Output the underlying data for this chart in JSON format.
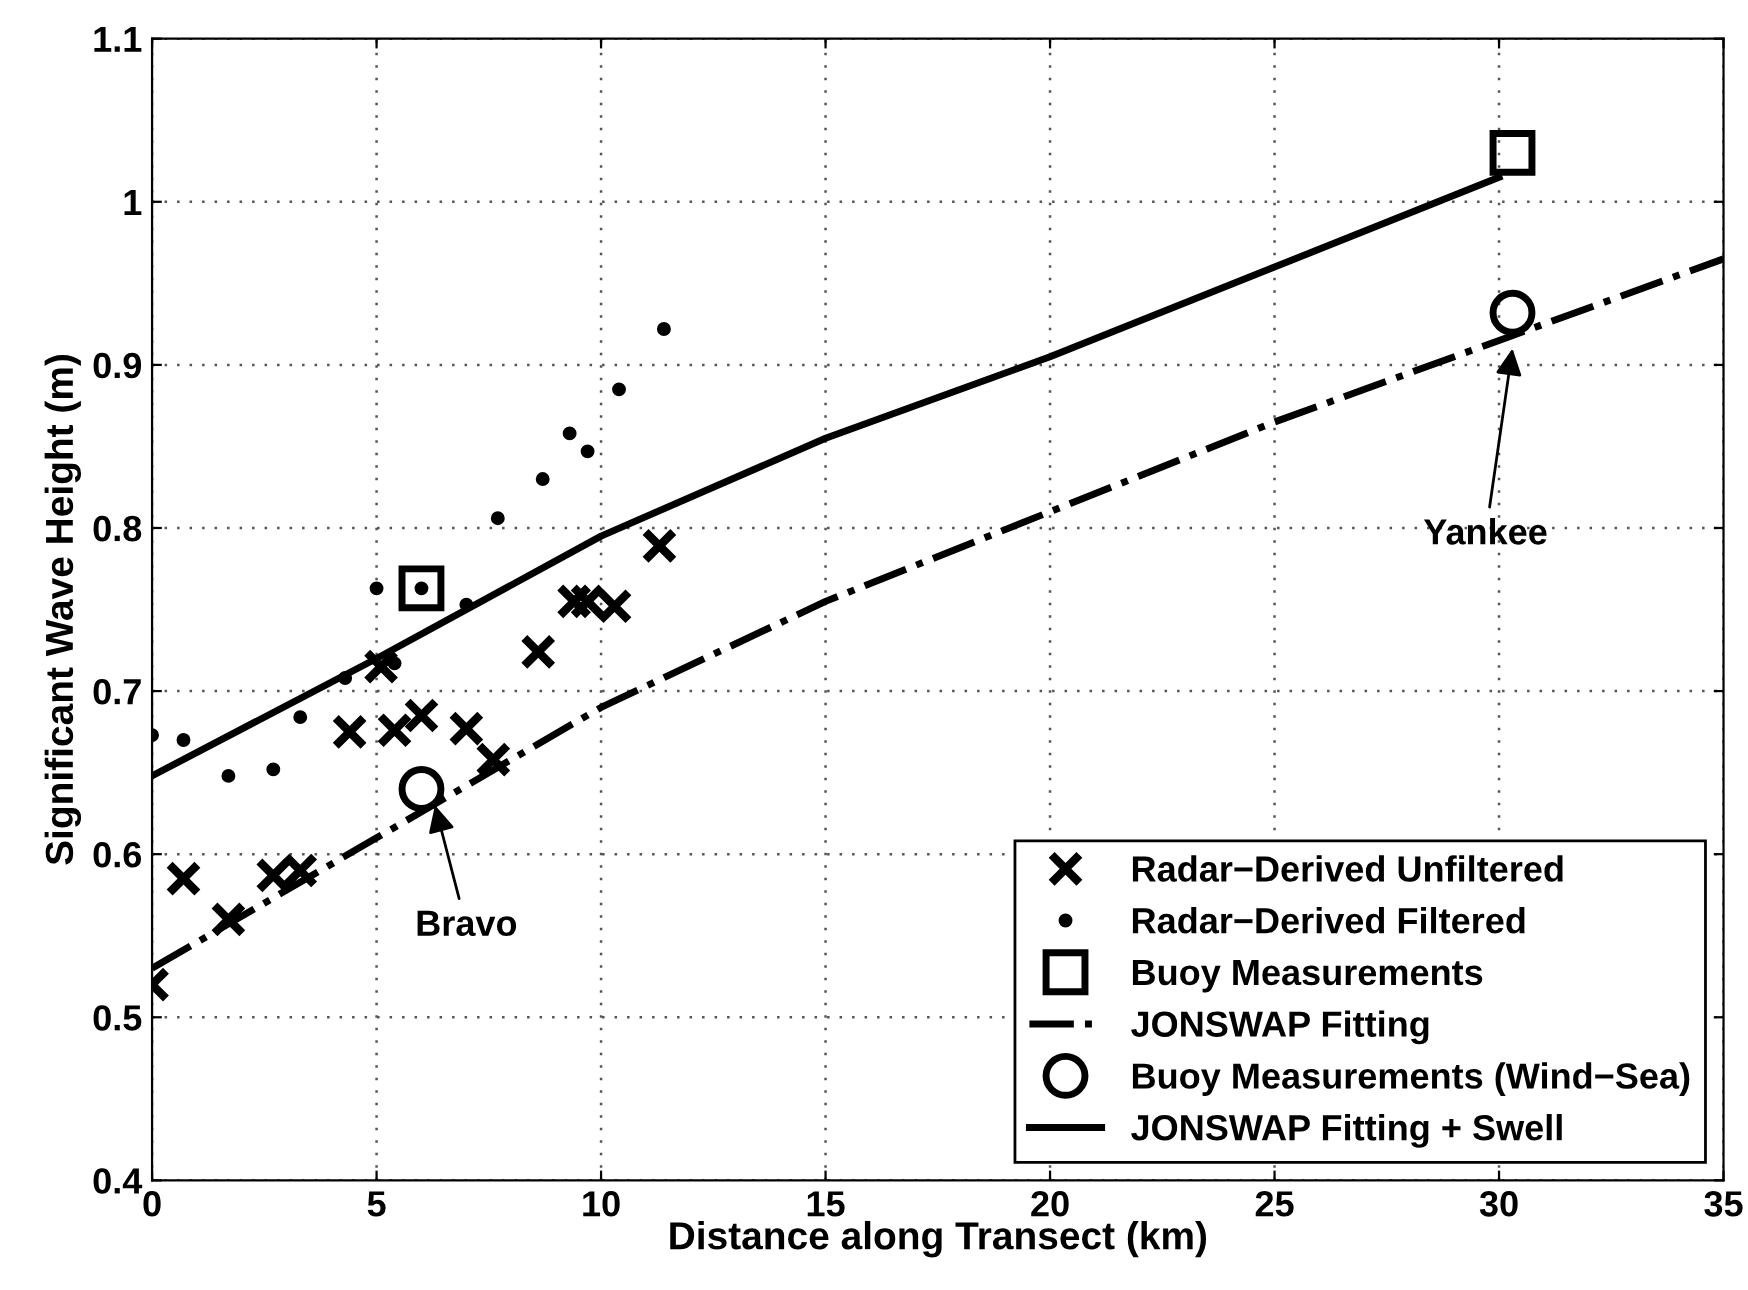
{
  "chart_data": {
    "type": "scatter",
    "xlabel": "Distance along Transect (km)",
    "ylabel": "Significant Wave Height (m)",
    "xlim": [
      0,
      35
    ],
    "ylim": [
      0.4,
      1.1
    ],
    "xticks": [
      0,
      5,
      10,
      15,
      20,
      25,
      30,
      35
    ],
    "yticks": [
      0.4,
      0.5,
      0.6,
      0.7,
      0.8,
      0.9,
      1,
      1.1
    ],
    "grid": true,
    "legend": "bottom right",
    "series": [
      {
        "name": "Radar−Derived Unfiltered",
        "marker": "cross",
        "color": "#000000",
        "x": [
          0,
          0.7,
          1.7,
          2.7,
          3.3,
          4.4,
          5.1,
          5.4,
          6,
          7,
          7.6,
          8.6,
          9.4,
          9.7,
          10.3,
          11.3
        ],
        "values": [
          0.52,
          0.585,
          0.56,
          0.587,
          0.59,
          0.675,
          0.715,
          0.676,
          0.685,
          0.677,
          0.658,
          0.724,
          0.755,
          0.755,
          0.752,
          0.789
        ]
      },
      {
        "name": "Radar−Derived Filtered",
        "marker": "circle",
        "color": "#000000",
        "x": [
          0,
          0.7,
          1.7,
          2.7,
          3.3,
          4.3,
          5,
          5.4,
          6,
          7,
          7.7,
          8.7,
          9.3,
          9.7,
          10.4,
          11.4
        ],
        "values": [
          0.673,
          0.67,
          0.648,
          0.652,
          0.684,
          0.708,
          0.763,
          0.717,
          0.763,
          0.753,
          0.806,
          0.83,
          0.858,
          0.847,
          0.885,
          0.922
        ]
      },
      {
        "name": "Buoy Measurements",
        "marker": "square",
        "color": "#000000",
        "x": [
          6,
          30.3
        ],
        "values": [
          0.763,
          1.03
        ]
      },
      {
        "name": "JONSWAP Fitting",
        "type": "line",
        "line_style": "dashdot",
        "color": "#000000",
        "x": [
          0,
          5,
          10,
          15,
          20,
          25,
          30,
          35
        ],
        "values": [
          0.53,
          0.61,
          0.69,
          0.755,
          0.81,
          0.865,
          0.915,
          0.965
        ]
      },
      {
        "name": "Buoy Measurements (Wind−Sea)",
        "marker": "circle",
        "color": "#000000",
        "x": [
          6,
          30.3
        ],
        "values": [
          0.64,
          0.932
        ]
      },
      {
        "name": "JONSWAP Fitting + Swell",
        "type": "line",
        "line_style": "solid",
        "color": "#000000",
        "x": [
          0,
          5,
          10,
          15,
          20,
          25,
          30
        ],
        "values": [
          0.648,
          0.72,
          0.795,
          0.855,
          0.905,
          0.96,
          1.015
        ]
      }
    ],
    "annotations": [
      {
        "text": "Bravo",
        "x": 6.3,
        "y": 0.63
      },
      {
        "text": "Yankee",
        "x": 30.3,
        "y": 0.91
      }
    ]
  }
}
